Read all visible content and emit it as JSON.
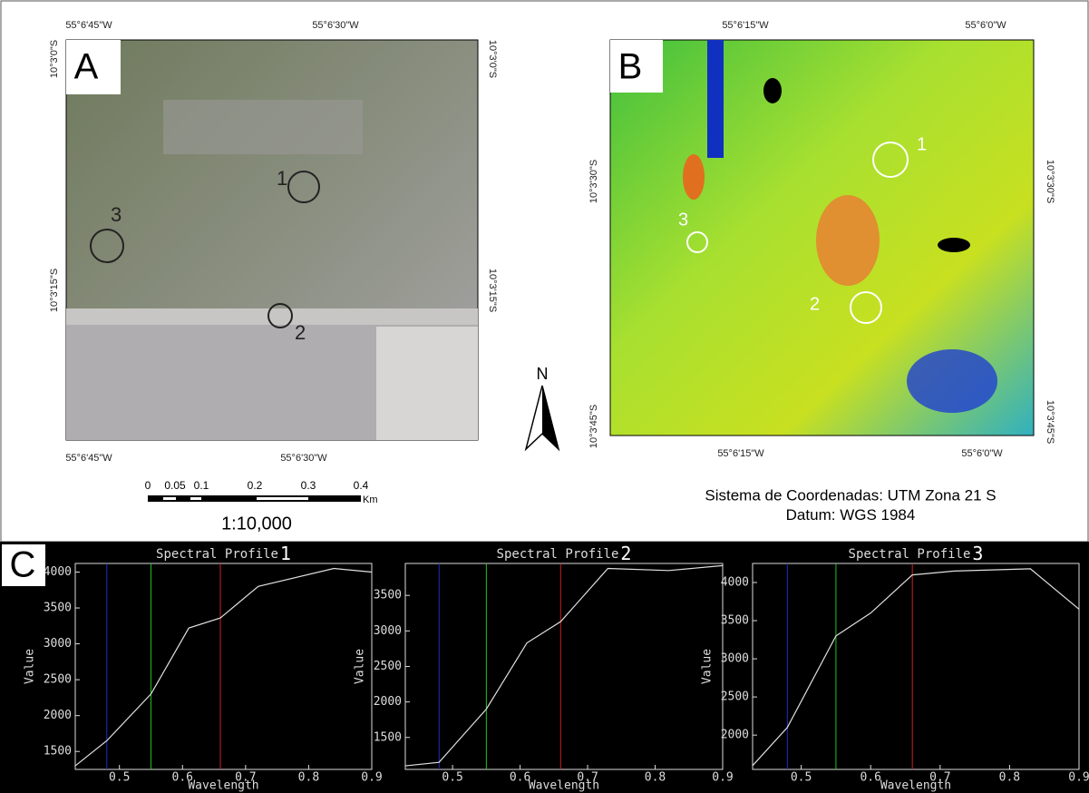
{
  "maps": {
    "panel_a": {
      "label": "A",
      "top_x": [
        "55°6'45\"W",
        "55°6'30\"W"
      ],
      "bottom_x": [
        "55°6'45\"W",
        "55°6'30\"W"
      ],
      "left_y": [
        "10°3'0\"S",
        "10°3'15\"S"
      ],
      "right_y": [
        "10°3'0\"S",
        "10°3'15\"S"
      ],
      "sites": [
        "1",
        "2",
        "3"
      ],
      "scale_labels": [
        "0",
        "0.05",
        "0.1",
        "0.2",
        "0.3",
        "0.4"
      ],
      "scale_unit": "Km",
      "scale_ratio": "1:10,000"
    },
    "panel_b": {
      "label": "B",
      "top_x": [
        "55°6'15\"W",
        "55°6'0\"W"
      ],
      "bottom_x": [
        "55°6'15\"W",
        "55°6'0\"W"
      ],
      "left_y": [
        "10°3'30\"S",
        "10°3'45\"S"
      ],
      "right_y": [
        "10°3'30\"S",
        "10°3'45\"S"
      ],
      "sites": [
        "1",
        "2",
        "3"
      ],
      "north": "N",
      "crs": "Sistema de Coordenadas: UTM Zona 21 S",
      "datum": "WGS 1984 ",
      "datum_label": "Datum:"
    },
    "panel_c_label": "C"
  },
  "chart_data": [
    {
      "type": "line",
      "title": "Spectral Profile",
      "profile": "1",
      "x_label": "Wavelength",
      "y_label": "Value",
      "xlim": [
        0.43,
        0.9
      ],
      "xticks": [
        0.5,
        0.6,
        0.7,
        0.8,
        0.9
      ],
      "ylim": [
        1250,
        4120
      ],
      "yticks": [
        1500,
        2000,
        2500,
        3000,
        3500,
        4000
      ],
      "markers": [
        {
          "value": 0.48,
          "color": "#2030c0"
        },
        {
          "value": 0.55,
          "color": "#20c020"
        },
        {
          "value": 0.66,
          "color": "#d02020"
        }
      ],
      "series": [
        {
          "color": "#e0e0e0",
          "x": [
            0.43,
            0.48,
            0.55,
            0.61,
            0.66,
            0.72,
            0.84,
            0.9
          ],
          "values": [
            1300,
            1650,
            2300,
            3220,
            3360,
            3800,
            4050,
            4000
          ]
        }
      ]
    },
    {
      "type": "line",
      "title": "Spectral Profile",
      "profile": "2",
      "x_label": "Wavelength",
      "y_label": "Value",
      "xlim": [
        0.43,
        0.9
      ],
      "xticks": [
        0.5,
        0.6,
        0.7,
        0.8,
        0.9
      ],
      "ylim": [
        1050,
        3950
      ],
      "yticks": [
        1500,
        2000,
        2500,
        3000,
        3500
      ],
      "markers": [
        {
          "value": 0.48,
          "color": "#2030c0"
        },
        {
          "value": 0.55,
          "color": "#20c020"
        },
        {
          "value": 0.66,
          "color": "#d02020"
        }
      ],
      "series": [
        {
          "color": "#e0e0e0",
          "x": [
            0.43,
            0.48,
            0.55,
            0.61,
            0.66,
            0.73,
            0.82,
            0.9
          ],
          "values": [
            1100,
            1150,
            1900,
            2830,
            3130,
            3880,
            3850,
            3920
          ]
        }
      ]
    },
    {
      "type": "line",
      "title": "Spectral Profile",
      "profile": "3",
      "x_label": "Wavelength",
      "y_label": "Value",
      "xlim": [
        0.43,
        0.9
      ],
      "xticks": [
        0.5,
        0.6,
        0.7,
        0.8,
        0.9
      ],
      "ylim": [
        1550,
        4250
      ],
      "yticks": [
        2000,
        2500,
        3000,
        3500,
        4000
      ],
      "markers": [
        {
          "value": 0.48,
          "color": "#2030c0"
        },
        {
          "value": 0.55,
          "color": "#20c020"
        },
        {
          "value": 0.66,
          "color": "#d02020"
        }
      ],
      "series": [
        {
          "color": "#e0e0e0",
          "x": [
            0.43,
            0.48,
            0.55,
            0.6,
            0.66,
            0.72,
            0.83,
            0.9
          ],
          "values": [
            1600,
            2100,
            3300,
            3600,
            4100,
            4150,
            4180,
            3650
          ]
        }
      ]
    }
  ]
}
